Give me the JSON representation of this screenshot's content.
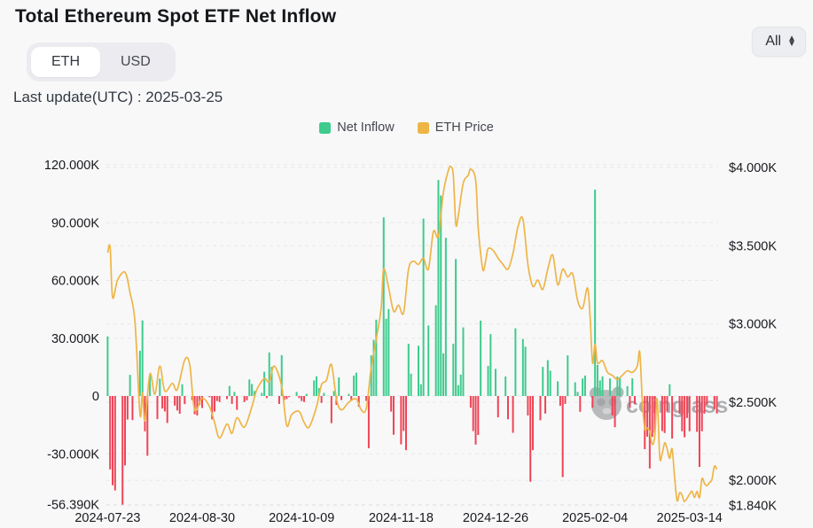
{
  "header": {
    "title": "Total Ethereum Spot ETF Net Inflow",
    "range_select": {
      "value": "All"
    }
  },
  "unit_toggle": {
    "options": [
      "ETH",
      "USD"
    ],
    "selected": "ETH"
  },
  "last_update": "Last update(UTC) : 2025-03-25",
  "watermark": "coinglass",
  "colors": {
    "background": "#f8f8f9",
    "positive_bar": "#3ecb8d",
    "negative_bar": "#ef4456",
    "price_line": "#eeb546",
    "grid": "#e7e8ea",
    "axis_text": "#17191d",
    "watermark_gray": "#9b9da0"
  },
  "chart_data": {
    "type": "combo",
    "title": "Total Ethereum Spot ETF Net Inflow",
    "grid": "dashed",
    "legend_position": "top-center",
    "left_axis": {
      "unit": "K ETH",
      "tick_labels": [
        "120.000K",
        "90.000K",
        "60.000K",
        "30.000K",
        "0",
        "-30.000K",
        "-56.390K"
      ],
      "tick_values": [
        120,
        90,
        60,
        30,
        0,
        -30,
        -56.39
      ],
      "min": -56.39,
      "max": 120
    },
    "right_axis": {
      "unit": "USD",
      "tick_labels": [
        "$4.000K",
        "$3.500K",
        "$3.000K",
        "$2.500K",
        "$2.000K",
        "$1.840K"
      ],
      "tick_values": [
        4000,
        3500,
        3000,
        2500,
        2000,
        1840
      ],
      "min": 1840,
      "max": 4017
    },
    "x_axis": {
      "tick_labels": [
        "2024-07-23",
        "2024-08-30",
        "2024-10-09",
        "2024-11-18",
        "2024-12-26",
        "2025-02-04",
        "2025-03-14"
      ],
      "tick_day_indices": [
        0,
        38,
        78,
        118,
        156,
        196,
        234
      ],
      "total_days": 246,
      "range": [
        "2024-07-23",
        "2025-03-25"
      ]
    },
    "series": [
      {
        "name": "Net Inflow",
        "type": "bar",
        "unit": "K ETH",
        "values": [
          30.9,
          -38.1,
          -46.3,
          -49,
          0,
          0,
          -56.4,
          -36,
          -12.2,
          11,
          -12.5,
          0,
          0,
          23.5,
          39.2,
          -18.3,
          -31,
          10.5,
          0,
          0,
          -12,
          9,
          -6.5,
          -8,
          -14,
          0,
          0,
          -5,
          -7.5,
          -9.2,
          6.1,
          -4.2,
          0,
          0,
          -2.1,
          -9.5,
          -10.1,
          -4.6,
          -6.2,
          0,
          0,
          -0.6,
          -12.1,
          -8.1,
          -2.6,
          -3.1,
          0,
          0,
          -1.6,
          5.2,
          -4.1,
          2.1,
          -7.2,
          0,
          0,
          -3.1,
          -2.2,
          8.6,
          6.2,
          2.6,
          0,
          0,
          1.6,
          12.6,
          -1.1,
          22.6,
          15.1,
          0,
          0,
          -4.1,
          21.2,
          -2.1,
          -1.6,
          -0.6,
          0,
          0,
          2.1,
          -1.1,
          -2.6,
          -3.1,
          1.1,
          0,
          0,
          8.1,
          10.2,
          4.1,
          -3.6,
          1.6,
          0,
          0,
          -14.1,
          2.6,
          -4.6,
          9.6,
          -2.1,
          0,
          0,
          1.1,
          -2.1,
          10.6,
          12.1,
          -5.6,
          0,
          0,
          -2.6,
          -27.1,
          21.1,
          29.2,
          39.6,
          0,
          0,
          92.7,
          40.1,
          45.1,
          -8.1,
          -20.1,
          0,
          0,
          -25.1,
          -18.1,
          -28.1,
          27.1,
          11.6,
          0,
          0,
          26.1,
          6.1,
          92.1,
          0,
          36.6,
          0,
          0,
          47.1,
          112.1,
          104.1,
          22.1,
          82.1,
          0,
          0,
          27.1,
          71.1,
          5.6,
          11.1,
          35.6,
          0,
          0,
          -6.1,
          -18.2,
          -25.2,
          -20.2,
          39.1,
          0,
          0,
          15.6,
          32.1,
          0,
          14.1,
          -11.1,
          0,
          0,
          10.1,
          -12.1,
          0,
          -19.1,
          35.1,
          0,
          0,
          29.6,
          25.6,
          -10.1,
          -44.5,
          -28.1,
          0,
          0,
          -12.6,
          15.1,
          -9.1,
          18.6,
          13.1,
          0,
          0,
          7.6,
          -5.1,
          -42.1,
          -4.1,
          21.1,
          0,
          0,
          7.1,
          2.1,
          -8.2,
          9.1,
          10.6,
          0,
          0,
          -6.1,
          107.1,
          16.1,
          8.1,
          10.2,
          0,
          0,
          9.1,
          -10.1,
          -16.2,
          10.1,
          9.2,
          0,
          0,
          5.1,
          -6.1,
          9.2,
          -4.1,
          0,
          0,
          0,
          -27.6,
          -21.1,
          -37.6,
          -21.2,
          -19.1,
          0,
          0,
          -18.2,
          -19.2,
          -8.1,
          6.1,
          -22.1,
          0,
          0,
          -9.2,
          -18.3,
          -21.4,
          -11.4,
          -18.3,
          0,
          0,
          -18.6,
          -36.8,
          -18.3,
          -9.1,
          -4.5,
          0,
          0,
          -6.8,
          -9.1
        ]
      },
      {
        "name": "ETH Price",
        "type": "line",
        "unit": "USD",
        "points": [
          [
            0,
            3455
          ],
          [
            1,
            3490
          ],
          [
            2,
            3170
          ],
          [
            4,
            3280
          ],
          [
            7,
            3330
          ],
          [
            9,
            3200
          ],
          [
            11,
            3010
          ],
          [
            13,
            2420
          ],
          [
            14,
            2560
          ],
          [
            15,
            2380
          ],
          [
            17,
            2680
          ],
          [
            19,
            2550
          ],
          [
            21,
            2730
          ],
          [
            23,
            2570
          ],
          [
            26,
            2620
          ],
          [
            28,
            2580
          ],
          [
            31,
            2770
          ],
          [
            33,
            2740
          ],
          [
            35,
            2450
          ],
          [
            38,
            2525
          ],
          [
            41,
            2470
          ],
          [
            43,
            2370
          ],
          [
            45,
            2270
          ],
          [
            48,
            2360
          ],
          [
            50,
            2300
          ],
          [
            52,
            2400
          ],
          [
            55,
            2340
          ],
          [
            58,
            2470
          ],
          [
            60,
            2580
          ],
          [
            63,
            2650
          ],
          [
            65,
            2630
          ],
          [
            67,
            2730
          ],
          [
            70,
            2600
          ],
          [
            72,
            2350
          ],
          [
            74,
            2420
          ],
          [
            77,
            2440
          ],
          [
            79,
            2370
          ],
          [
            81,
            2340
          ],
          [
            84,
            2470
          ],
          [
            86,
            2610
          ],
          [
            88,
            2640
          ],
          [
            90,
            2740
          ],
          [
            92,
            2520
          ],
          [
            94,
            2450
          ],
          [
            97,
            2500
          ],
          [
            100,
            2520
          ],
          [
            102,
            2450
          ],
          [
            104,
            2460
          ],
          [
            106,
            2720
          ],
          [
            108,
            2900
          ],
          [
            110,
            3100
          ],
          [
            111,
            3350
          ],
          [
            113,
            3230
          ],
          [
            115,
            3080
          ],
          [
            117,
            3120
          ],
          [
            119,
            3070
          ],
          [
            121,
            3350
          ],
          [
            123,
            3400
          ],
          [
            125,
            3380
          ],
          [
            127,
            3420
          ],
          [
            129,
            3350
          ],
          [
            131,
            3590
          ],
          [
            133,
            3560
          ],
          [
            135,
            3840
          ],
          [
            137,
            3980
          ],
          [
            138,
            4005
          ],
          [
            139,
            3950
          ],
          [
            140,
            3640
          ],
          [
            141,
            3690
          ],
          [
            143,
            3900
          ],
          [
            145,
            3950
          ],
          [
            146,
            3990
          ],
          [
            148,
            3920
          ],
          [
            149,
            3620
          ],
          [
            150,
            3450
          ],
          [
            151,
            3340
          ],
          [
            152,
            3400
          ],
          [
            153,
            3480
          ],
          [
            155,
            3470
          ],
          [
            157,
            3420
          ],
          [
            159,
            3380
          ],
          [
            161,
            3350
          ],
          [
            163,
            3450
          ],
          [
            165,
            3620
          ],
          [
            167,
            3670
          ],
          [
            169,
            3380
          ],
          [
            171,
            3240
          ],
          [
            173,
            3280
          ],
          [
            175,
            3220
          ],
          [
            177,
            3350
          ],
          [
            179,
            3440
          ],
          [
            181,
            3250
          ],
          [
            183,
            3350
          ],
          [
            185,
            3300
          ],
          [
            187,
            3320
          ],
          [
            189,
            3150
          ],
          [
            191,
            3100
          ],
          [
            193,
            3230
          ],
          [
            194,
            3050
          ],
          [
            195,
            2750
          ],
          [
            196,
            2870
          ],
          [
            197,
            2750
          ],
          [
            199,
            2765
          ],
          [
            201,
            2690
          ],
          [
            203,
            2670
          ],
          [
            205,
            2645
          ],
          [
            207,
            2672
          ],
          [
            209,
            2700
          ],
          [
            211,
            2690
          ],
          [
            213,
            2730
          ],
          [
            214,
            2820
          ],
          [
            215,
            2510
          ],
          [
            216,
            2330
          ],
          [
            217,
            2335
          ],
          [
            218,
            2310
          ],
          [
            219,
            2230
          ],
          [
            220,
            2280
          ],
          [
            221,
            2520
          ],
          [
            222,
            2150
          ],
          [
            223,
            2170
          ],
          [
            224,
            2240
          ],
          [
            225,
            2200
          ],
          [
            226,
            2140
          ],
          [
            227,
            2200
          ],
          [
            228,
            2020
          ],
          [
            229,
            1870
          ],
          [
            230,
            1920
          ],
          [
            231,
            1905
          ],
          [
            232,
            1865
          ],
          [
            234,
            1910
          ],
          [
            235,
            1930
          ],
          [
            236,
            1890
          ],
          [
            237,
            1930
          ],
          [
            238,
            1890
          ],
          [
            239,
            2010
          ],
          [
            240,
            1980
          ],
          [
            241,
            1965
          ],
          [
            242,
            1985
          ],
          [
            243,
            2005
          ],
          [
            244,
            2090
          ],
          [
            245,
            2070
          ]
        ]
      }
    ]
  }
}
